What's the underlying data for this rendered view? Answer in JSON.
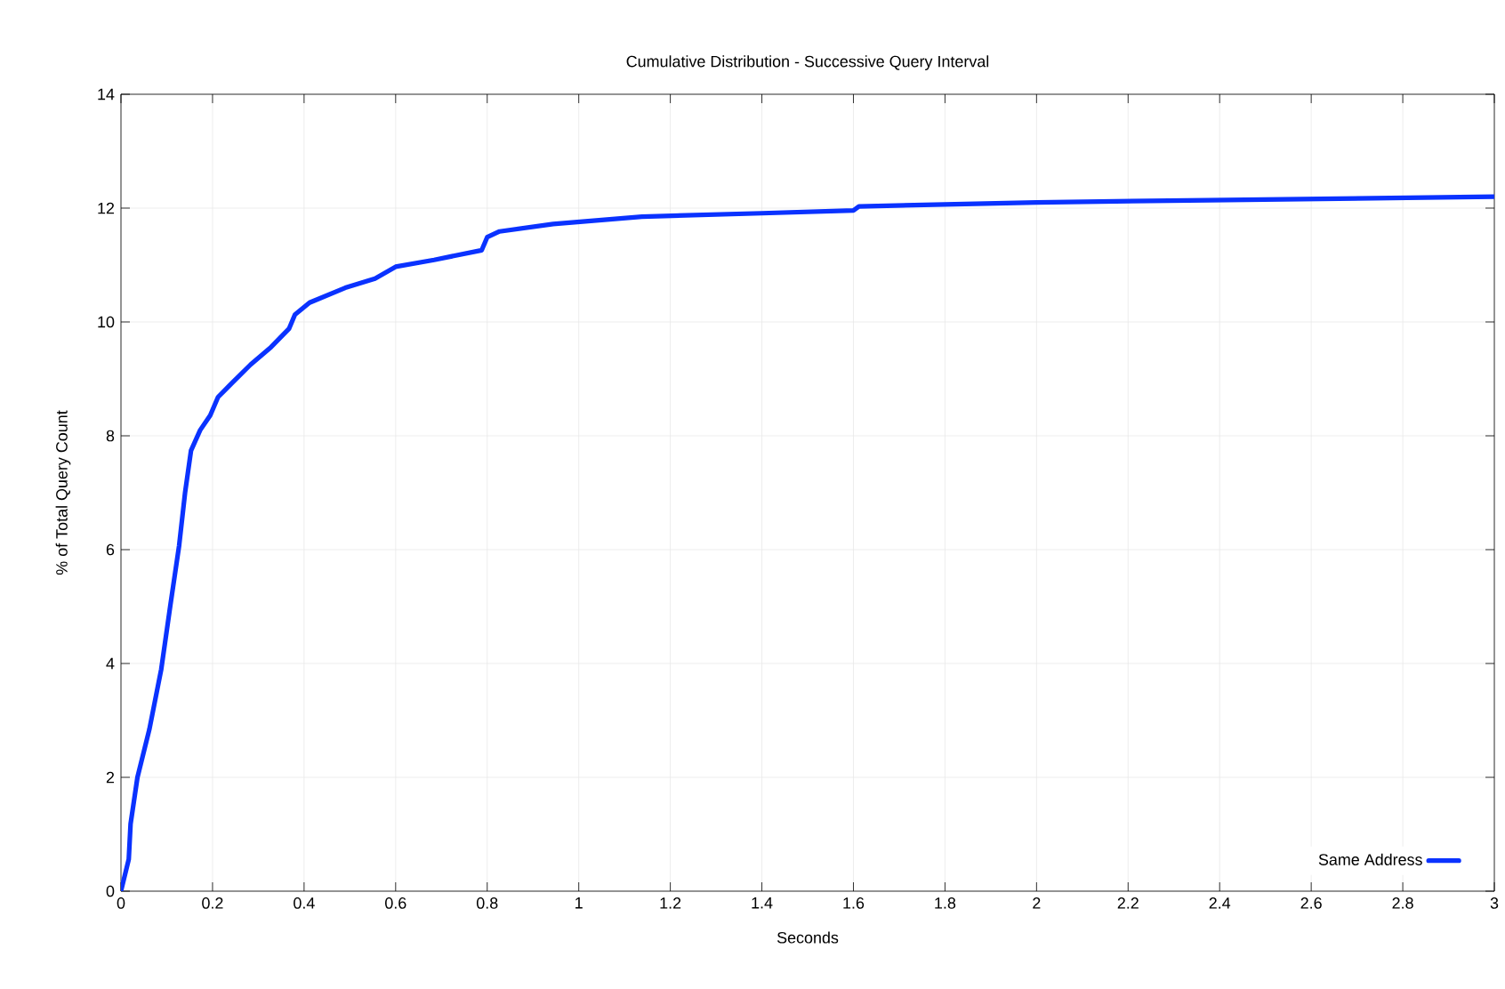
{
  "chart_data": {
    "type": "line",
    "title": "Cumulative Distribution - Successive Query Interval",
    "xlabel": "Seconds",
    "ylabel": "% of Total Query Count",
    "xlim": [
      0,
      3
    ],
    "ylim": [
      0,
      14
    ],
    "xticks": [
      0,
      0.2,
      0.4,
      0.6,
      0.8,
      1,
      1.2,
      1.4,
      1.6,
      1.8,
      2,
      2.2,
      2.4,
      2.6,
      2.8,
      3
    ],
    "yticks": [
      0,
      2,
      4,
      6,
      8,
      10,
      12,
      14
    ],
    "grid": true,
    "legend": "bottom right",
    "marker": "none",
    "line_style": "solid",
    "series": [
      {
        "name": "Same Address",
        "color": "#0a32ff",
        "x": [
          0,
          0.017,
          0.021,
          0.036,
          0.062,
          0.088,
          0.108,
          0.127,
          0.14,
          0.153,
          0.173,
          0.195,
          0.212,
          0.244,
          0.283,
          0.328,
          0.367,
          0.38,
          0.412,
          0.49,
          0.555,
          0.6,
          0.684,
          0.788,
          0.8,
          0.827,
          0.944,
          1.138,
          1.4,
          1.6,
          1.612,
          2.0,
          2.375,
          3.0
        ],
        "values": [
          0,
          0.56,
          1.18,
          2.0,
          2.84,
          3.9,
          5.03,
          6.07,
          7.0,
          7.74,
          8.1,
          8.36,
          8.68,
          8.94,
          9.25,
          9.56,
          9.88,
          10.13,
          10.34,
          10.6,
          10.76,
          10.97,
          11.09,
          11.26,
          11.49,
          11.59,
          11.72,
          11.85,
          11.91,
          11.96,
          12.03,
          12.1,
          12.14,
          12.2
        ]
      }
    ]
  }
}
